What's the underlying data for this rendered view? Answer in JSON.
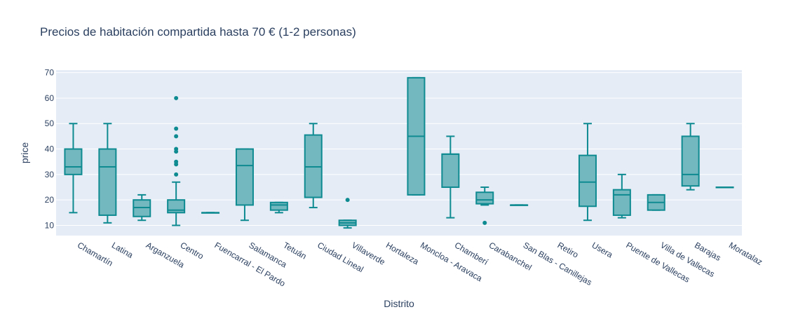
{
  "chart_data": {
    "type": "box",
    "title": "Precios de habitación compartida hasta 70 € (1-2 personas)",
    "xlabel": "Distrito",
    "ylabel": "price",
    "ylim": [
      6,
      71
    ],
    "yticks": [
      10,
      20,
      30,
      40,
      50,
      60,
      70
    ],
    "grid": true,
    "legend": "none",
    "colors": {
      "box_stroke": "#0e8a91",
      "box_fill": "#74b8bf",
      "plot_bg": "#e5ecf6",
      "grid": "#ffffff",
      "text": "#2a3f5f"
    },
    "categories": [
      "Chamartín",
      "Latina",
      "Arganzuela",
      "Centro",
      "Fuencarral - El Pardo",
      "Salamanca",
      "Tetuán",
      "Ciudad Lineal",
      "Villaverde",
      "Hortaleza",
      "Moncloa - Aravaca",
      "Chamberí",
      "Carabanchel",
      "San Blas - Canillejas",
      "Retiro",
      "Usera",
      "Puente de Vallecas",
      "Villa de Vallecas",
      "Barajas",
      "Moratalaz"
    ],
    "boxes": [
      {
        "category": "Chamartín",
        "min": 15,
        "q1": 30,
        "median": 33,
        "q3": 40,
        "max": 50,
        "outliers": []
      },
      {
        "category": "Latina",
        "min": 11,
        "q1": 14,
        "median": 33,
        "q3": 40,
        "max": 50,
        "outliers": []
      },
      {
        "category": "Arganzuela",
        "min": 12,
        "q1": 13.5,
        "median": 17,
        "q3": 20,
        "max": 22,
        "outliers": []
      },
      {
        "category": "Centro",
        "min": 10,
        "q1": 15,
        "median": 16,
        "q3": 20,
        "max": 27,
        "outliers": [
          30,
          34,
          35,
          39,
          40,
          45,
          48,
          60
        ]
      },
      {
        "category": "Fuencarral - El Pardo",
        "min": 15,
        "q1": 15,
        "median": 15,
        "q3": 15,
        "max": 15,
        "outliers": []
      },
      {
        "category": "Salamanca",
        "min": 12,
        "q1": 18,
        "median": 33.5,
        "q3": 40,
        "max": 40,
        "outliers": []
      },
      {
        "category": "Tetuán",
        "min": 15,
        "q1": 16,
        "median": 18,
        "q3": 19,
        "max": 19,
        "outliers": []
      },
      {
        "category": "Ciudad Lineal",
        "min": 17,
        "q1": 21,
        "median": 33,
        "q3": 45.5,
        "max": 50,
        "outliers": []
      },
      {
        "category": "Villaverde",
        "min": 9,
        "q1": 10,
        "median": 11,
        "q3": 12,
        "max": 12,
        "outliers": [
          20
        ]
      },
      {
        "category": "Hortaleza",
        "empty": true
      },
      {
        "category": "Moncloa - Aravaca",
        "min": 22,
        "q1": 22,
        "median": 45,
        "q3": 68,
        "max": 68,
        "outliers": []
      },
      {
        "category": "Chamberí",
        "min": 13,
        "q1": 25,
        "median": 38,
        "q3": 38,
        "max": 45,
        "outliers": []
      },
      {
        "category": "Carabanchel",
        "min": 18,
        "q1": 18.5,
        "median": 20,
        "q3": 23,
        "max": 25,
        "outliers": [
          11
        ]
      },
      {
        "category": "San Blas - Canillejas",
        "min": 18,
        "q1": 18,
        "median": 18,
        "q3": 18,
        "max": 18,
        "outliers": []
      },
      {
        "category": "Retiro",
        "empty": true
      },
      {
        "category": "Usera",
        "min": 12,
        "q1": 17.5,
        "median": 27,
        "q3": 37.5,
        "max": 50,
        "outliers": []
      },
      {
        "category": "Puente de Vallecas",
        "min": 13,
        "q1": 14,
        "median": 22,
        "q3": 24,
        "max": 30,
        "outliers": []
      },
      {
        "category": "Villa de Vallecas",
        "min": 16,
        "q1": 16,
        "median": 19,
        "q3": 22,
        "max": 22,
        "outliers": []
      },
      {
        "category": "Barajas",
        "min": 24,
        "q1": 25.5,
        "median": 30,
        "q3": 45,
        "max": 50,
        "outliers": []
      },
      {
        "category": "Moratalaz",
        "min": 25,
        "q1": 25,
        "median": 25,
        "q3": 25,
        "max": 25,
        "outliers": []
      }
    ]
  }
}
